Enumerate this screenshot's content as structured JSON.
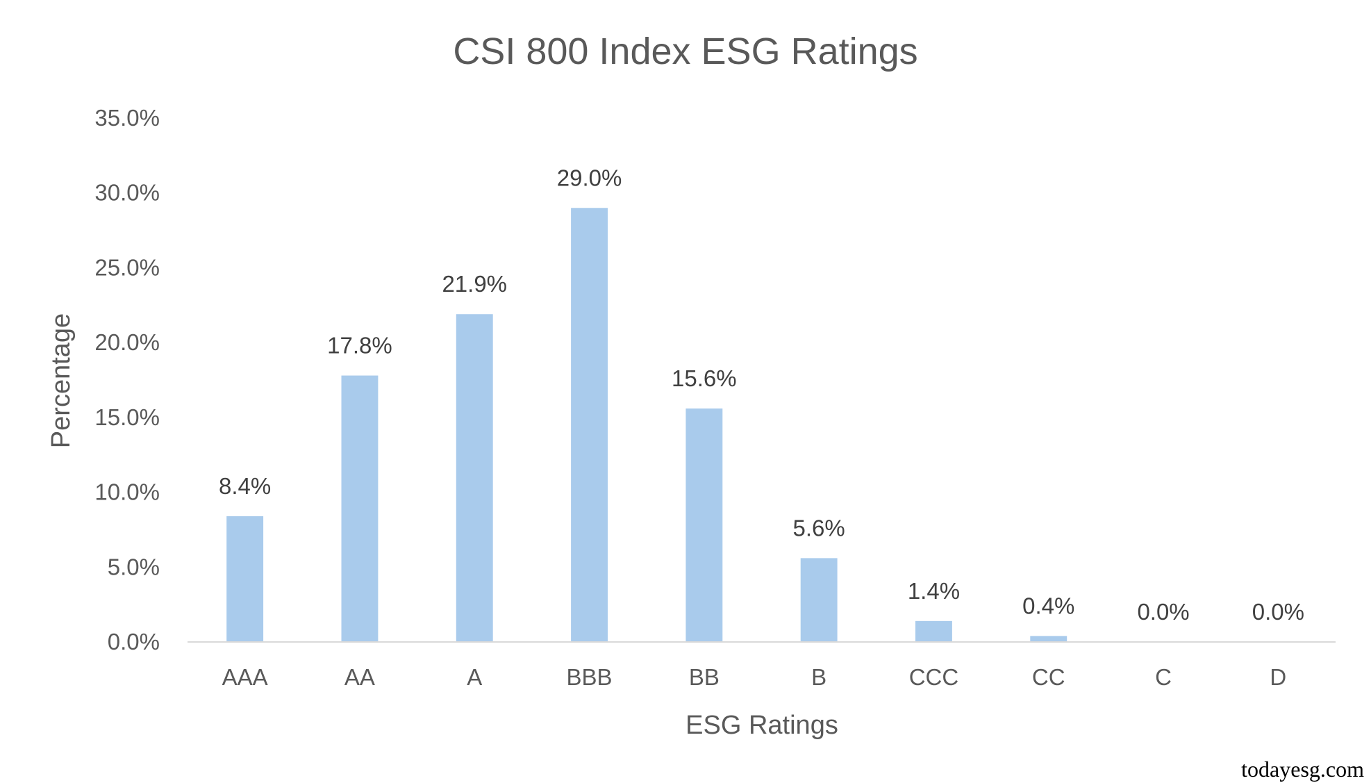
{
  "chart_data": {
    "type": "bar",
    "title": "CSI 800 Index ESG Ratings",
    "xlabel": "ESG Ratings",
    "ylabel": "Percentage",
    "categories": [
      "AAA",
      "AA",
      "A",
      "BBB",
      "BB",
      "B",
      "CCC",
      "CC",
      "C",
      "D"
    ],
    "values": [
      8.4,
      17.8,
      21.9,
      29.0,
      15.6,
      5.6,
      1.4,
      0.4,
      0.0,
      0.0
    ],
    "data_labels": [
      "8.4%",
      "17.8%",
      "21.9%",
      "29.0%",
      "15.6%",
      "5.6%",
      "1.4%",
      "0.4%",
      "0.0%",
      "0.0%"
    ],
    "ylim": [
      0,
      35
    ],
    "yticks": [
      0,
      5,
      10,
      15,
      20,
      25,
      30,
      35
    ],
    "ytick_labels": [
      "0.0%",
      "5.0%",
      "10.0%",
      "15.0%",
      "20.0%",
      "25.0%",
      "30.0%",
      "35.0%"
    ],
    "grid": false,
    "legend": "none",
    "bar_color": "#A9CBEC",
    "axis_color": "#D9D9D9"
  },
  "watermark": "todayesg.com"
}
